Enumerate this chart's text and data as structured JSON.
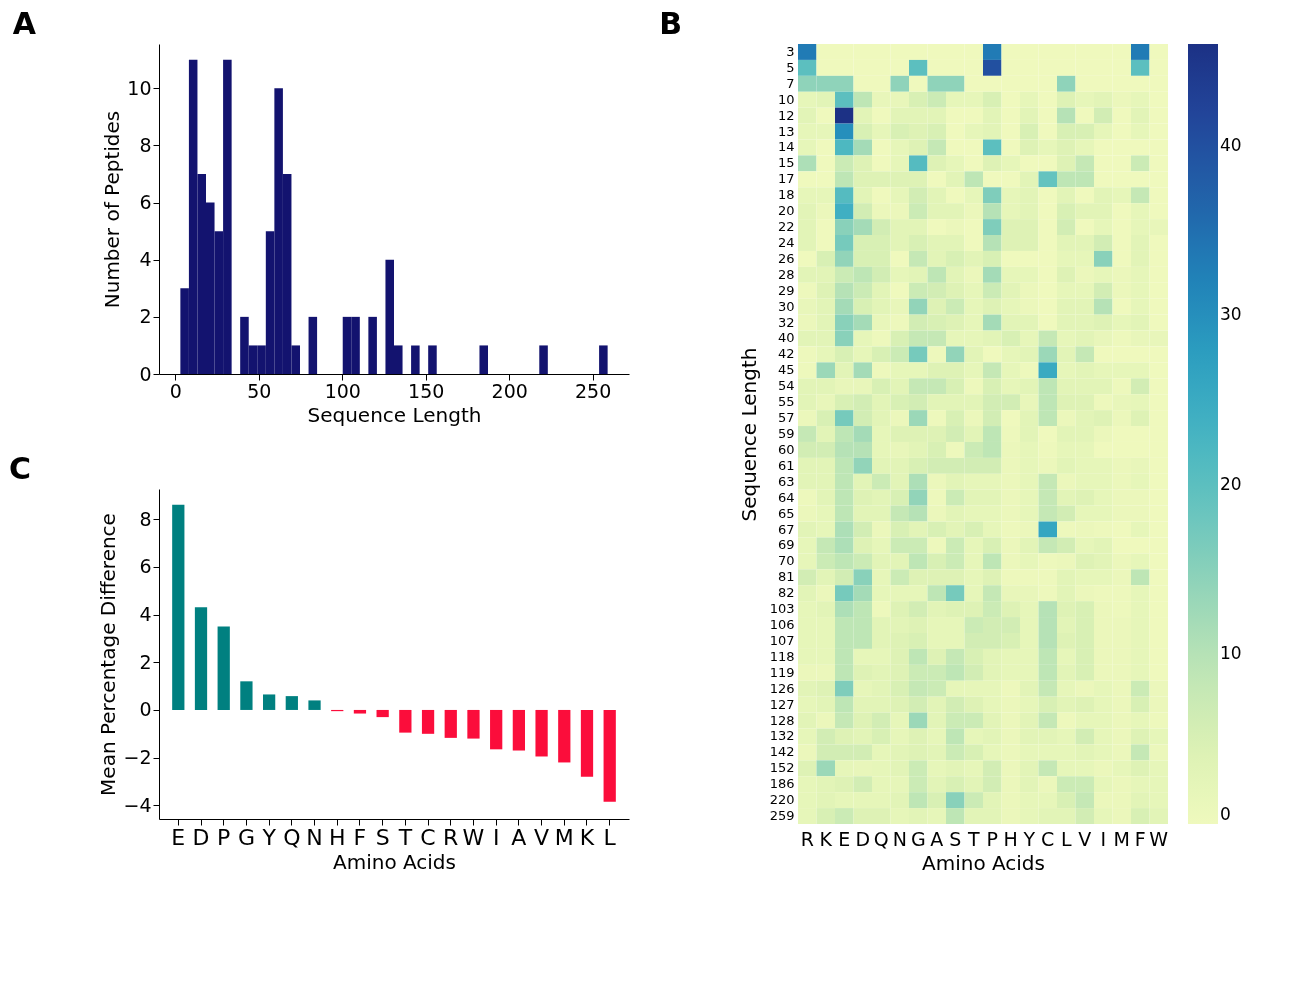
{
  "chart_data": [
    {
      "type": "histogram",
      "title": "A",
      "xlabel": "Sequence Length",
      "ylabel": "Number of Peptides",
      "color": "#13136f",
      "bins": [
        3,
        8.12,
        13.24,
        18.36,
        23.48,
        28.6,
        33.72,
        38.84,
        43.96,
        49.08,
        54.2,
        59.32,
        64.44,
        69.56,
        74.68,
        79.8,
        84.92,
        90.04,
        95.16,
        100.28,
        105.4,
        110.52,
        115.64,
        120.76,
        125.88,
        131,
        136.12,
        141.24,
        146.36,
        151.48,
        156.6,
        161.72,
        166.84,
        171.96,
        177.08,
        182.2,
        187.32,
        192.44,
        197.56,
        202.68,
        207.8,
        212.92,
        218.04,
        223.16,
        228.28,
        233.4,
        238.52,
        243.64,
        248.76,
        253.88,
        259
      ],
      "values": [
        3,
        11,
        7,
        6,
        5,
        11,
        0,
        2,
        1,
        1,
        5,
        10,
        7,
        1,
        0,
        2,
        0,
        0,
        0,
        2,
        2,
        0,
        2,
        0,
        4,
        1,
        0,
        1,
        0,
        1,
        0,
        0,
        0,
        0,
        0,
        1,
        0,
        0,
        0,
        0,
        0,
        0,
        1,
        0,
        0,
        0,
        0,
        0,
        0,
        1
      ],
      "xlim": [
        -9.8,
        271.8
      ],
      "ylim": [
        0,
        11.55
      ],
      "xticks": [
        0,
        50,
        100,
        150,
        200,
        250
      ],
      "yticks": [
        0,
        2,
        4,
        6,
        8,
        10
      ]
    },
    {
      "type": "bar",
      "title": "C",
      "xlabel": "Amino Acids",
      "ylabel": "Mean Percentage Difference",
      "categories": [
        "E",
        "D",
        "P",
        "G",
        "Y",
        "Q",
        "N",
        "H",
        "F",
        "S",
        "T",
        "C",
        "R",
        "W",
        "I",
        "A",
        "V",
        "M",
        "K",
        "L"
      ],
      "values": [
        8.6,
        4.3,
        3.5,
        1.2,
        0.65,
        0.58,
        0.4,
        -0.05,
        -0.15,
        -0.3,
        -0.95,
        -1.0,
        -1.17,
        -1.2,
        -1.65,
        -1.7,
        -1.95,
        -2.2,
        -2.8,
        -3.85
      ],
      "colors": [
        "#008080",
        "#008080",
        "#008080",
        "#008080",
        "#008080",
        "#008080",
        "#008080",
        "#fb0d3b",
        "#fb0d3b",
        "#fb0d3b",
        "#fb0d3b",
        "#fb0d3b",
        "#fb0d3b",
        "#fb0d3b",
        "#fb0d3b",
        "#fb0d3b",
        "#fb0d3b",
        "#fb0d3b",
        "#fb0d3b",
        "#fb0d3b"
      ],
      "ylim": [
        -4.57,
        9.26
      ],
      "yticks": [
        -4,
        -2,
        0,
        2,
        4,
        6,
        8
      ]
    },
    {
      "type": "heatmap",
      "title": "B",
      "xlabel": "Amino Acids",
      "ylabel": "Sequence Length",
      "categories": [
        "R",
        "K",
        "E",
        "D",
        "Q",
        "N",
        "G",
        "A",
        "S",
        "T",
        "P",
        "H",
        "Y",
        "C",
        "L",
        "V",
        "I",
        "M",
        "F",
        "W"
      ],
      "y_categories": [
        "3",
        "5",
        "7",
        "10",
        "12",
        "13",
        "14",
        "15",
        "17",
        "18",
        "20",
        "22",
        "24",
        "26",
        "28",
        "29",
        "30",
        "32",
        "40",
        "42",
        "45",
        "54",
        "55",
        "57",
        "59",
        "60",
        "61",
        "63",
        "64",
        "65",
        "67",
        "69",
        "70",
        "81",
        "82",
        "103",
        "106",
        "107",
        "118",
        "119",
        "126",
        "127",
        "128",
        "132",
        "142",
        "152",
        "186",
        "220",
        "259"
      ],
      "cells": [
        [
          33.3,
          0,
          0,
          0,
          0,
          0,
          0,
          0,
          0,
          0,
          33.3,
          0,
          0,
          0,
          0,
          0,
          0,
          0,
          33.3,
          0
        ],
        [
          20,
          0,
          0,
          0,
          0,
          0,
          20,
          0,
          0,
          0,
          40,
          0,
          0,
          0,
          0,
          0,
          0,
          0,
          20,
          0
        ],
        [
          14.3,
          14.3,
          14.3,
          0,
          0,
          14.3,
          0,
          14.3,
          14.3,
          0,
          0,
          0,
          0,
          0,
          14.3,
          0,
          0,
          0,
          0,
          0
        ],
        [
          2,
          3,
          20,
          9,
          1.5,
          1.5,
          5,
          7,
          2,
          2,
          5,
          0,
          2,
          0,
          4,
          2,
          3,
          1,
          2,
          0
        ],
        [
          3,
          0,
          46,
          3,
          0,
          3,
          3,
          3,
          0,
          0,
          3,
          0,
          3,
          0,
          10,
          0,
          6,
          0,
          3,
          0
        ],
        [
          2,
          2,
          30,
          5,
          2,
          5,
          4,
          5,
          0,
          2,
          3,
          0,
          5,
          0,
          5,
          5,
          2,
          0,
          2,
          0
        ],
        [
          2,
          0,
          22,
          12,
          0,
          2,
          4,
          8,
          0,
          0,
          20,
          0,
          4,
          2,
          4,
          2,
          0,
          0,
          0,
          0
        ],
        [
          11,
          0,
          7,
          4,
          0,
          2,
          21,
          4,
          2,
          0,
          4,
          2,
          0,
          0,
          4,
          8,
          0,
          0,
          7,
          0
        ],
        [
          0,
          0,
          9,
          4,
          4,
          4,
          4,
          0,
          3,
          9,
          0,
          0,
          3,
          19,
          9,
          9,
          0,
          0,
          0,
          0
        ],
        [
          2,
          2,
          21,
          3,
          0,
          2,
          6,
          3,
          0,
          2,
          16,
          2,
          3,
          0,
          3,
          0,
          3,
          2,
          8,
          0
        ],
        [
          3,
          1,
          24,
          6,
          1,
          1,
          7,
          3,
          3,
          1,
          10,
          2,
          3,
          0,
          5,
          3,
          3,
          0,
          2,
          0
        ],
        [
          3,
          0,
          15,
          12,
          6,
          3,
          3,
          0,
          1,
          0,
          16,
          4,
          4,
          0,
          6,
          0,
          2,
          0,
          2,
          1.5
        ],
        [
          3,
          0,
          17,
          5,
          5,
          3,
          5,
          3,
          3,
          0,
          10,
          4,
          4,
          0,
          3,
          3,
          6,
          0,
          3,
          0
        ],
        [
          0,
          5,
          14,
          5,
          5,
          0,
          8,
          3,
          5,
          3,
          5,
          0,
          0,
          0,
          2,
          2,
          15,
          0,
          3,
          0
        ],
        [
          3,
          3,
          7,
          9,
          6,
          2,
          3,
          9,
          3,
          1,
          12,
          2,
          2,
          0,
          4,
          1,
          2,
          1,
          2,
          0
        ],
        [
          0.5,
          4,
          10,
          7,
          3,
          0,
          7,
          6,
          4,
          2,
          7,
          3,
          1,
          0,
          2,
          2,
          6,
          1,
          2,
          0
        ],
        [
          1.5,
          3,
          12,
          5,
          3,
          1.5,
          14,
          4,
          7,
          2,
          4,
          2,
          1,
          0,
          3,
          3,
          10,
          0,
          2,
          0
        ],
        [
          1,
          3,
          15,
          12,
          1.5,
          0.5,
          6,
          5,
          4,
          2,
          12,
          3,
          3,
          0,
          3,
          3,
          4,
          2,
          3,
          0
        ],
        [
          3,
          3,
          15,
          2,
          0.5,
          5,
          8,
          8,
          2,
          2,
          3,
          5,
          2,
          8,
          2,
          3,
          1.5,
          0.5,
          1.5,
          1.5
        ],
        [
          0.5,
          2,
          5,
          2,
          5,
          7,
          17,
          0.5,
          14,
          3,
          0,
          2,
          3,
          13,
          3,
          8,
          0,
          0,
          0,
          0
        ],
        [
          0.5,
          13,
          3,
          12,
          0.5,
          2,
          2,
          4,
          4,
          2,
          8,
          2,
          0.5,
          25,
          2,
          3,
          2,
          2,
          2,
          0
        ],
        [
          3,
          3,
          1.5,
          1.5,
          5,
          3,
          8,
          8,
          5,
          0.5,
          5,
          2,
          3,
          9,
          3,
          3,
          3,
          0.5,
          6,
          0
        ],
        [
          3,
          1.5,
          5,
          6,
          3,
          5,
          6,
          3,
          3,
          3,
          6,
          6,
          1.5,
          9,
          4,
          4,
          0.5,
          1.5,
          2,
          0
        ],
        [
          1,
          5,
          17,
          6,
          3,
          1,
          13,
          0.5,
          5,
          1,
          6,
          0,
          3,
          9,
          1,
          3,
          4,
          1,
          4,
          0
        ],
        [
          8,
          3,
          9,
          12,
          2,
          4,
          4,
          4,
          6,
          3,
          9,
          0.5,
          3,
          0,
          3,
          3,
          1,
          0,
          0,
          0
        ],
        [
          6,
          6,
          10,
          10,
          2,
          1.5,
          3,
          5,
          0.5,
          7,
          9,
          1,
          2,
          0.5,
          2,
          2,
          0,
          0,
          0,
          0
        ],
        [
          3,
          3,
          9,
          14,
          3,
          3,
          5,
          6,
          6,
          6,
          6,
          1,
          2,
          1,
          3,
          2,
          2,
          1,
          1.5,
          0
        ],
        [
          3,
          3,
          9,
          3,
          7,
          3,
          11,
          1,
          3,
          2,
          2,
          1,
          2,
          8,
          1,
          2,
          2,
          1,
          2,
          0
        ],
        [
          0.5,
          3,
          9,
          4,
          3,
          5,
          14,
          0.5,
          7,
          3,
          3,
          1,
          2,
          8,
          3,
          4,
          2,
          1,
          1,
          0
        ],
        [
          1,
          2,
          9,
          3,
          3,
          8,
          10,
          1,
          3,
          2,
          2,
          1,
          2,
          8,
          6,
          2,
          2,
          1,
          1,
          0
        ],
        [
          3,
          2,
          11,
          6,
          1,
          5,
          3,
          5,
          3,
          5,
          2,
          0.5,
          1,
          26,
          0.5,
          1,
          0.5,
          0,
          2,
          0
        ],
        [
          2,
          8,
          11,
          4,
          2,
          7,
          7,
          0.5,
          7,
          2,
          5,
          1,
          3,
          8,
          6,
          2,
          3,
          0,
          0,
          0
        ],
        [
          2,
          7,
          9,
          7,
          3,
          3,
          9,
          5,
          7,
          2,
          9,
          1,
          2,
          0.5,
          1,
          4,
          3,
          1,
          2,
          0
        ],
        [
          6,
          3,
          6,
          15,
          2,
          7,
          4,
          4,
          4,
          2,
          4,
          0.5,
          0.5,
          0.5,
          3,
          2,
          2,
          1,
          9,
          0
        ],
        [
          3,
          1,
          17,
          12,
          2,
          2,
          2,
          9,
          17,
          2,
          8,
          1.5,
          1.5,
          0.5,
          3,
          1,
          0.5,
          0.5,
          2,
          0
        ],
        [
          2,
          3,
          11,
          9,
          0.5,
          4,
          6,
          3,
          4,
          4,
          7,
          4,
          2,
          10,
          4,
          5,
          1,
          0.5,
          2,
          0
        ],
        [
          2,
          2,
          9,
          9,
          3,
          3,
          4,
          2,
          2,
          7,
          6,
          6,
          2,
          10,
          3,
          5,
          1,
          1,
          2,
          0
        ],
        [
          2,
          2,
          9,
          9,
          3,
          4,
          5,
          2,
          2,
          6,
          6,
          5,
          2,
          10,
          4,
          5,
          1,
          1,
          2,
          0
        ],
        [
          2,
          2,
          9,
          2,
          2,
          4,
          9,
          4,
          8,
          5,
          3,
          2,
          2,
          9,
          2,
          5,
          1,
          1,
          2,
          0
        ],
        [
          1,
          1,
          9,
          4,
          3,
          4,
          7,
          7,
          9,
          6,
          3,
          2,
          2,
          9,
          3,
          5,
          1,
          1,
          2,
          0
        ],
        [
          3,
          4,
          16,
          2,
          3,
          5,
          8,
          7,
          2,
          2,
          2,
          0.5,
          3,
          8,
          2,
          1,
          2,
          1,
          7,
          1
        ],
        [
          2,
          3,
          9,
          3,
          3,
          4,
          6,
          3,
          6,
          4,
          2,
          1,
          2,
          5,
          3,
          4,
          2,
          1,
          5,
          1
        ],
        [
          3,
          1,
          8,
          4,
          6,
          2,
          13,
          3,
          7,
          7,
          3,
          1,
          3,
          8,
          0.5,
          2,
          2,
          1,
          2,
          0.5
        ],
        [
          2,
          6,
          4,
          3,
          5,
          2,
          4,
          2,
          9,
          2,
          3,
          1,
          3,
          3,
          2,
          6,
          2,
          1,
          4,
          2
        ],
        [
          1,
          6,
          6,
          6,
          2,
          3,
          4,
          3,
          7,
          5,
          2,
          1,
          2,
          2,
          2,
          3,
          2,
          1,
          8,
          1
        ],
        [
          4,
          13,
          2,
          1.5,
          2,
          3,
          7,
          2,
          3,
          2,
          6,
          1,
          3,
          8,
          2,
          2,
          1,
          2,
          4,
          2
        ],
        [
          2,
          3,
          4,
          6,
          2,
          2,
          7,
          3,
          5,
          3,
          6,
          1,
          3,
          1,
          7,
          7,
          2,
          1,
          2,
          2
        ],
        [
          2,
          3,
          2,
          2,
          2,
          3,
          9,
          5,
          15,
          7,
          3,
          1,
          2,
          2,
          5,
          8,
          1,
          1,
          3,
          2
        ],
        [
          2,
          5,
          7,
          4,
          4,
          2,
          3,
          2,
          9,
          3,
          3,
          1,
          2,
          3,
          3,
          6,
          2,
          1,
          5,
          3
        ]
      ],
      "clim": [
        0,
        46
      ],
      "cticks": [
        0,
        10,
        20,
        30,
        40
      ]
    }
  ]
}
